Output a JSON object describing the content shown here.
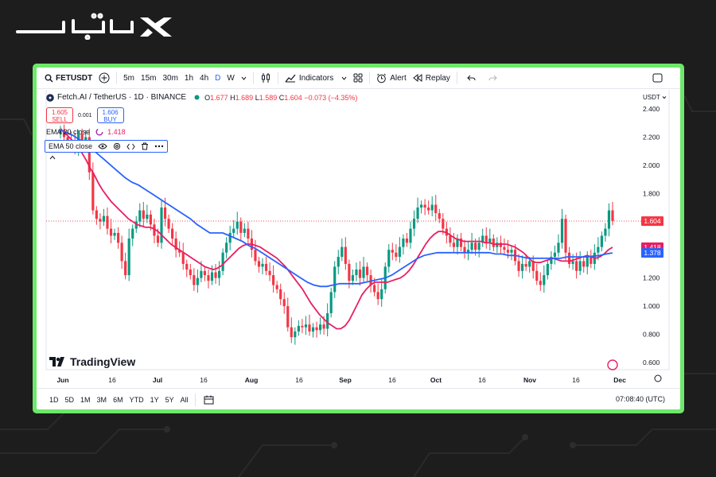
{
  "toolbar": {
    "symbol": "FETUSDT",
    "intervals": [
      "5m",
      "15m",
      "30m",
      "1h",
      "4h",
      "D",
      "W"
    ],
    "active_interval": "D",
    "indicators_label": "Indicators",
    "alert_label": "Alert",
    "replay_label": "Replay"
  },
  "legend": {
    "title": "Fetch.AI / TetherUS · 1D · BINANCE",
    "o_label": "O",
    "o": "1.677",
    "h_label": "H",
    "h": "1.689",
    "l_label": "L",
    "l": "1.589",
    "c_label": "C",
    "c": "1.604",
    "change": "−0.073 (−4.35%)"
  },
  "trade": {
    "sell_price": "1.605",
    "sell_label": "SELL",
    "spread": "0.001",
    "buy_price": "1.606",
    "buy_label": "BUY"
  },
  "indicators": {
    "ema20_label": "EMA 20 close",
    "ema20_value": "1.418",
    "ema20_color": "#e91e63",
    "ema50_label": "EMA 50 close",
    "ema50_color": "#2962ff"
  },
  "currency": "USDT",
  "brand": "TradingView",
  "bottom": {
    "ranges": [
      "1D",
      "5D",
      "1M",
      "3M",
      "6M",
      "YTD",
      "1Y",
      "5Y",
      "All"
    ],
    "clock": "07:08:40 (UTC)"
  },
  "chart_data": {
    "type": "candlestick",
    "ylim": [
      0.58,
      2.5
    ],
    "yticks": [
      "2.400",
      "2.200",
      "2.000",
      "1.800",
      "1.600",
      "1.400",
      "1.200",
      "1.000",
      "0.800",
      "0.600"
    ],
    "x_labels": [
      "Jun",
      "16",
      "Jul",
      "16",
      "Aug",
      "16",
      "Sep",
      "16",
      "Oct",
      "16",
      "Nov",
      "16",
      "Dec"
    ],
    "price_labels": [
      {
        "value": 1.604,
        "text": "1.604",
        "color": "#f23645"
      },
      {
        "value": 1.418,
        "text": "1.418",
        "color": "#e91e63"
      },
      {
        "value": 1.378,
        "text": "1.378",
        "color": "#2962ff"
      }
    ],
    "close": [
      2.25,
      2.2,
      2.18,
      2.16,
      2.12,
      2.22,
      2.15,
      2.2,
      1.95,
      1.68,
      1.62,
      1.6,
      1.64,
      1.55,
      1.5,
      1.52,
      1.45,
      1.32,
      1.22,
      1.48,
      1.55,
      1.6,
      1.68,
      1.62,
      1.65,
      1.58,
      1.5,
      1.45,
      1.7,
      1.62,
      1.55,
      1.48,
      1.4,
      1.38,
      1.3,
      1.26,
      1.22,
      1.15,
      1.2,
      1.25,
      1.22,
      1.18,
      1.24,
      1.2,
      1.25,
      1.38,
      1.45,
      1.52,
      1.55,
      1.6,
      1.52,
      1.55,
      1.48,
      1.4,
      1.32,
      1.28,
      1.3,
      1.25,
      1.22,
      1.15,
      1.12,
      1.05,
      1.0,
      0.85,
      0.78,
      0.82,
      0.86,
      0.85,
      0.87,
      0.82,
      0.85,
      0.83,
      0.87,
      0.84,
      0.95,
      1.1,
      1.28,
      1.35,
      1.42,
      1.3,
      1.18,
      1.22,
      1.26,
      1.2,
      1.28,
      1.22,
      1.15,
      1.1,
      1.05,
      1.12,
      1.28,
      1.4,
      1.38,
      1.35,
      1.42,
      1.48,
      1.45,
      1.55,
      1.62,
      1.7,
      1.72,
      1.7,
      1.68,
      1.72,
      1.66,
      1.62,
      1.55,
      1.5,
      1.45,
      1.42,
      1.48,
      1.42,
      1.38,
      1.4,
      1.45,
      1.4,
      1.45,
      1.5,
      1.45,
      1.48,
      1.42,
      1.45,
      1.42,
      1.4,
      1.38,
      1.4,
      1.32,
      1.25,
      1.3,
      1.28,
      1.32,
      1.25,
      1.18,
      1.15,
      1.22,
      1.3,
      1.35,
      1.38,
      1.45,
      1.62,
      1.38,
      1.3,
      1.32,
      1.25,
      1.32,
      1.28,
      1.35,
      1.3,
      1.38,
      1.42,
      1.5,
      1.55,
      1.68,
      1.604
    ],
    "ema20": [
      2.26,
      2.23,
      2.2,
      2.17,
      2.13,
      2.09,
      2.04,
      1.98,
      1.93,
      1.87,
      1.82,
      1.78,
      1.74,
      1.71,
      1.68,
      1.65,
      1.62,
      1.6,
      1.58,
      1.57,
      1.56,
      1.56,
      1.55,
      1.53,
      1.5,
      1.47,
      1.44,
      1.42,
      1.4,
      1.38,
      1.36,
      1.34,
      1.32,
      1.3,
      1.28,
      1.27,
      1.26,
      1.27,
      1.29,
      1.32,
      1.35,
      1.38,
      1.41,
      1.43,
      1.44,
      1.44,
      1.43,
      1.42,
      1.4,
      1.38,
      1.36,
      1.34,
      1.31,
      1.28,
      1.24,
      1.2,
      1.16,
      1.12,
      1.07,
      1.02,
      0.98,
      0.94,
      0.91,
      0.88,
      0.86,
      0.84,
      0.84,
      0.86,
      0.9,
      0.96,
      1.02,
      1.08,
      1.12,
      1.15,
      1.17,
      1.17,
      1.17,
      1.17,
      1.18,
      1.19,
      1.2,
      1.22,
      1.25,
      1.29,
      1.34,
      1.39,
      1.44,
      1.48,
      1.51,
      1.53,
      1.53,
      1.52,
      1.5,
      1.48,
      1.47,
      1.46,
      1.46,
      1.46,
      1.46,
      1.46,
      1.45,
      1.45,
      1.44,
      1.44,
      1.44,
      1.44,
      1.43,
      1.42,
      1.4,
      1.38,
      1.35,
      1.32,
      1.31,
      1.31,
      1.32,
      1.33,
      1.34,
      1.33,
      1.32,
      1.32,
      1.32,
      1.33,
      1.34,
      1.35,
      1.36,
      1.35,
      1.34,
      1.35,
      1.37,
      1.4,
      1.418
    ],
    "ema50": [
      2.25,
      2.23,
      2.21,
      2.18,
      2.15,
      2.11,
      2.07,
      2.03,
      1.99,
      1.95,
      1.91,
      1.88,
      1.86,
      1.83,
      1.8,
      1.77,
      1.74,
      1.71,
      1.68,
      1.65,
      1.62,
      1.58,
      1.55,
      1.52,
      1.52,
      1.52,
      1.5,
      1.48,
      1.46,
      1.43,
      1.41,
      1.38,
      1.35,
      1.32,
      1.29,
      1.26,
      1.23,
      1.2,
      1.17,
      1.15,
      1.14,
      1.14,
      1.15,
      1.16,
      1.16,
      1.16,
      1.16,
      1.17,
      1.18,
      1.19,
      1.2,
      1.22,
      1.25,
      1.28,
      1.31,
      1.34,
      1.36,
      1.37,
      1.38,
      1.38,
      1.38,
      1.38,
      1.38,
      1.38,
      1.38,
      1.38,
      1.38,
      1.37,
      1.37,
      1.36,
      1.36,
      1.35,
      1.34,
      1.34,
      1.34,
      1.34,
      1.34,
      1.34,
      1.35,
      1.35,
      1.35,
      1.35,
      1.355,
      1.36,
      1.37,
      1.378
    ]
  }
}
